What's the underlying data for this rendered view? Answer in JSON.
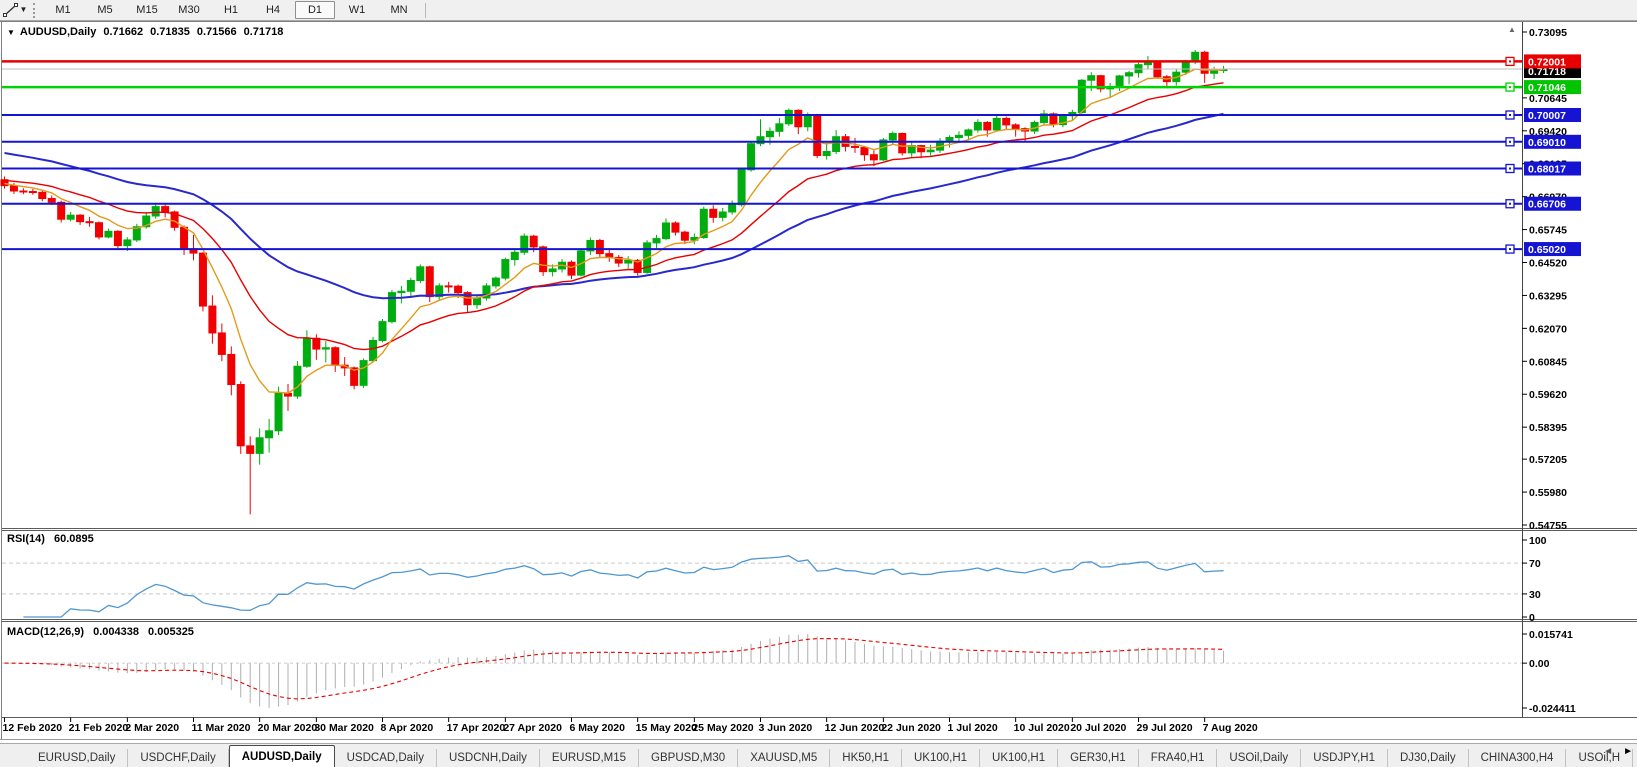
{
  "toolbar": {
    "timeframes": [
      "M1",
      "M5",
      "M15",
      "M30",
      "H1",
      "H4",
      "D1",
      "W1",
      "MN"
    ],
    "active_timeframe": "D1"
  },
  "chart": {
    "symbol_period": "AUDUSD,Daily",
    "ohlc": {
      "open": "0.71662",
      "high": "0.71835",
      "low": "0.71566",
      "close": "0.71718"
    }
  },
  "chart_data": {
    "type": "candlestick",
    "symbol": "AUDUSD",
    "period": "Daily",
    "title": "AUDUSD,Daily",
    "x_axis_labels": [
      "12 Feb 2020",
      "21 Feb 2020",
      "2 Mar 2020",
      "11 Mar 2020",
      "20 Mar 2020",
      "30 Mar 2020",
      "8 Apr 2020",
      "17 Apr 2020",
      "27 Apr 2020",
      "6 May 2020",
      "15 May 2020",
      "25 May 2020",
      "3 Jun 2020",
      "12 Jun 2020",
      "22 Jun 2020",
      "1 Jul 2020",
      "10 Jul 2020",
      "20 Jul 2020",
      "29 Jul 2020",
      "7 Aug 2020"
    ],
    "price_axis_ticks": [
      "0.73095",
      "0.70645",
      "0.69420",
      "0.68195",
      "0.66970",
      "0.65745",
      "0.64520",
      "0.63295",
      "0.62070",
      "0.60845",
      "0.59620",
      "0.58395",
      "0.57205",
      "0.55980",
      "0.54755"
    ],
    "current_price": {
      "value": "0.71718",
      "line_color": "#bdbdbd",
      "label_bg": "#000000"
    },
    "horizontal_lines": [
      {
        "price": "0.72001",
        "color": "#e60000",
        "width": 2.5
      },
      {
        "price": "0.71046",
        "color": "#00d400",
        "width": 2.5
      },
      {
        "price": "0.70007",
        "color": "#1414d2",
        "width": 2
      },
      {
        "price": "0.69010",
        "color": "#1414d2",
        "width": 2
      },
      {
        "price": "0.68017",
        "color": "#1414d2",
        "width": 2
      },
      {
        "price": "0.66706",
        "color": "#1414d2",
        "width": 2
      },
      {
        "price": "0.65020",
        "color": "#1414d2",
        "width": 2
      }
    ],
    "moving_average_colors": {
      "fast": "#e39a1b",
      "mid": "#e60000",
      "slow": "#2828cc"
    },
    "candle_colors": {
      "up": "#00ad10",
      "down": "#f00000"
    },
    "candles_ohlc": [
      [
        0.676,
        0.6772,
        0.6727,
        0.6738
      ],
      [
        0.6738,
        0.6748,
        0.6707,
        0.6718
      ],
      [
        0.6718,
        0.6728,
        0.6706,
        0.6716
      ],
      [
        0.6716,
        0.6726,
        0.6704,
        0.6713
      ],
      [
        0.6713,
        0.672,
        0.668,
        0.669
      ],
      [
        0.669,
        0.6701,
        0.6666,
        0.6676
      ],
      [
        0.6676,
        0.6682,
        0.6601,
        0.6613
      ],
      [
        0.6613,
        0.664,
        0.6605,
        0.6628
      ],
      [
        0.6628,
        0.6632,
        0.6592,
        0.6604
      ],
      [
        0.6604,
        0.6622,
        0.6585,
        0.66
      ],
      [
        0.66,
        0.6605,
        0.6538,
        0.6547
      ],
      [
        0.6547,
        0.6578,
        0.6542,
        0.6568
      ],
      [
        0.6568,
        0.6572,
        0.6505,
        0.6515
      ],
      [
        0.6515,
        0.6546,
        0.6495,
        0.6536
      ],
      [
        0.6536,
        0.6596,
        0.6528,
        0.6585
      ],
      [
        0.6585,
        0.664,
        0.6578,
        0.6625
      ],
      [
        0.6625,
        0.667,
        0.6615,
        0.666
      ],
      [
        0.666,
        0.6668,
        0.662,
        0.664
      ],
      [
        0.664,
        0.6645,
        0.657,
        0.6583
      ],
      [
        0.6583,
        0.659,
        0.648,
        0.6503
      ],
      [
        0.6503,
        0.6555,
        0.646,
        0.6487
      ],
      [
        0.6487,
        0.649,
        0.627,
        0.629
      ],
      [
        0.629,
        0.633,
        0.615,
        0.619
      ],
      [
        0.619,
        0.6225,
        0.6085,
        0.611
      ],
      [
        0.611,
        0.614,
        0.5958,
        0.5998
      ],
      [
        0.5998,
        0.601,
        0.574,
        0.577
      ],
      [
        0.577,
        0.5805,
        0.5515,
        0.5742
      ],
      [
        0.5742,
        0.5835,
        0.57,
        0.58
      ],
      [
        0.58,
        0.587,
        0.5745,
        0.5826
      ],
      [
        0.5826,
        0.599,
        0.581,
        0.5965
      ],
      [
        0.5965,
        0.6,
        0.59,
        0.5955
      ],
      [
        0.5955,
        0.6085,
        0.5945,
        0.6066
      ],
      [
        0.6066,
        0.62,
        0.606,
        0.617
      ],
      [
        0.617,
        0.6185,
        0.609,
        0.613
      ],
      [
        0.613,
        0.616,
        0.608,
        0.6135
      ],
      [
        0.6135,
        0.614,
        0.6045,
        0.607
      ],
      [
        0.607,
        0.61,
        0.603,
        0.606
      ],
      [
        0.606,
        0.6065,
        0.598,
        0.5995
      ],
      [
        0.5995,
        0.6095,
        0.5985,
        0.6087
      ],
      [
        0.6087,
        0.6175,
        0.608,
        0.6162
      ],
      [
        0.6162,
        0.6242,
        0.6155,
        0.6232
      ],
      [
        0.6232,
        0.635,
        0.6225,
        0.634
      ],
      [
        0.634,
        0.6365,
        0.63,
        0.6345
      ],
      [
        0.6345,
        0.6395,
        0.632,
        0.6385
      ],
      [
        0.6385,
        0.6445,
        0.6375,
        0.6436
      ],
      [
        0.6436,
        0.644,
        0.6305,
        0.6325
      ],
      [
        0.6325,
        0.6375,
        0.631,
        0.6365
      ],
      [
        0.6365,
        0.638,
        0.634,
        0.6364
      ],
      [
        0.6364,
        0.637,
        0.632,
        0.634
      ],
      [
        0.634,
        0.6345,
        0.6265,
        0.6295
      ],
      [
        0.6295,
        0.633,
        0.628,
        0.632
      ],
      [
        0.632,
        0.6375,
        0.631,
        0.6365
      ],
      [
        0.6365,
        0.64,
        0.6355,
        0.6394
      ],
      [
        0.6394,
        0.647,
        0.6385,
        0.6463
      ],
      [
        0.6463,
        0.65,
        0.644,
        0.649
      ],
      [
        0.649,
        0.656,
        0.648,
        0.655
      ],
      [
        0.655,
        0.6555,
        0.649,
        0.651
      ],
      [
        0.651,
        0.6515,
        0.6402,
        0.6418
      ],
      [
        0.6418,
        0.6445,
        0.64,
        0.6428
      ],
      [
        0.6428,
        0.6465,
        0.6415,
        0.6453
      ],
      [
        0.6453,
        0.646,
        0.639,
        0.6405
      ],
      [
        0.6405,
        0.6505,
        0.64,
        0.6495
      ],
      [
        0.6495,
        0.6545,
        0.648,
        0.6534
      ],
      [
        0.6534,
        0.654,
        0.647,
        0.6485
      ],
      [
        0.6485,
        0.6505,
        0.6455,
        0.6471
      ],
      [
        0.6471,
        0.648,
        0.6435,
        0.645
      ],
      [
        0.645,
        0.6475,
        0.643,
        0.646
      ],
      [
        0.646,
        0.6465,
        0.6403,
        0.6415
      ],
      [
        0.6415,
        0.6535,
        0.641,
        0.6525
      ],
      [
        0.6525,
        0.6555,
        0.6505,
        0.6541
      ],
      [
        0.6541,
        0.6616,
        0.6535,
        0.6599
      ],
      [
        0.6599,
        0.6605,
        0.6552,
        0.6565
      ],
      [
        0.6565,
        0.657,
        0.652,
        0.6535
      ],
      [
        0.6535,
        0.656,
        0.652,
        0.6545
      ],
      [
        0.6545,
        0.666,
        0.654,
        0.665
      ],
      [
        0.665,
        0.6665,
        0.66,
        0.662
      ],
      [
        0.662,
        0.6655,
        0.6605,
        0.664
      ],
      [
        0.664,
        0.6683,
        0.663,
        0.6667
      ],
      [
        0.6667,
        0.6805,
        0.666,
        0.6797
      ],
      [
        0.6797,
        0.69,
        0.679,
        0.6894
      ],
      [
        0.6894,
        0.6985,
        0.6885,
        0.692
      ],
      [
        0.692,
        0.6955,
        0.689,
        0.694
      ],
      [
        0.694,
        0.699,
        0.692,
        0.6968
      ],
      [
        0.6968,
        0.7025,
        0.696,
        0.7018
      ],
      [
        0.7018,
        0.7022,
        0.693,
        0.6957
      ],
      [
        0.6957,
        0.701,
        0.694,
        0.7
      ],
      [
        0.7,
        0.7005,
        0.684,
        0.685
      ],
      [
        0.685,
        0.6902,
        0.6835,
        0.6865
      ],
      [
        0.6865,
        0.6945,
        0.6855,
        0.692
      ],
      [
        0.692,
        0.693,
        0.6865,
        0.6884
      ],
      [
        0.6884,
        0.6915,
        0.686,
        0.688
      ],
      [
        0.688,
        0.6885,
        0.683,
        0.6853
      ],
      [
        0.6853,
        0.687,
        0.681,
        0.6834
      ],
      [
        0.6834,
        0.6915,
        0.683,
        0.6908
      ],
      [
        0.6908,
        0.694,
        0.689,
        0.6932
      ],
      [
        0.6932,
        0.6935,
        0.685,
        0.686
      ],
      [
        0.686,
        0.69,
        0.6845,
        0.6887
      ],
      [
        0.6887,
        0.689,
        0.684,
        0.6864
      ],
      [
        0.6864,
        0.689,
        0.685,
        0.687
      ],
      [
        0.687,
        0.6915,
        0.686,
        0.6903
      ],
      [
        0.6903,
        0.6925,
        0.688,
        0.6917
      ],
      [
        0.6917,
        0.694,
        0.69,
        0.6925
      ],
      [
        0.6925,
        0.695,
        0.691,
        0.6945
      ],
      [
        0.6945,
        0.6985,
        0.6935,
        0.6973
      ],
      [
        0.6973,
        0.6978,
        0.692,
        0.6945
      ],
      [
        0.6945,
        0.7,
        0.694,
        0.6988
      ],
      [
        0.6988,
        0.6995,
        0.6945,
        0.6964
      ],
      [
        0.6964,
        0.697,
        0.692,
        0.695
      ],
      [
        0.695,
        0.6955,
        0.69,
        0.6941
      ],
      [
        0.6941,
        0.698,
        0.693,
        0.6973
      ],
      [
        0.6973,
        0.702,
        0.6965,
        0.7005
      ],
      [
        0.7005,
        0.701,
        0.6955,
        0.6965
      ],
      [
        0.6965,
        0.7005,
        0.6955,
        0.6998
      ],
      [
        0.6998,
        0.702,
        0.698,
        0.701
      ],
      [
        0.701,
        0.7135,
        0.7005,
        0.713
      ],
      [
        0.713,
        0.716,
        0.709,
        0.7147
      ],
      [
        0.7147,
        0.715,
        0.7085,
        0.7098
      ],
      [
        0.7098,
        0.712,
        0.7065,
        0.7105
      ],
      [
        0.7105,
        0.715,
        0.709,
        0.7146
      ],
      [
        0.7146,
        0.7165,
        0.7115,
        0.7158
      ],
      [
        0.7158,
        0.7195,
        0.714,
        0.7188
      ],
      [
        0.7188,
        0.722,
        0.717,
        0.7195
      ],
      [
        0.7195,
        0.72,
        0.7135,
        0.7143
      ],
      [
        0.7143,
        0.715,
        0.71,
        0.7125
      ],
      [
        0.7125,
        0.717,
        0.711,
        0.716
      ],
      [
        0.716,
        0.7205,
        0.715,
        0.72
      ],
      [
        0.72,
        0.7243,
        0.719,
        0.7234
      ],
      [
        0.7234,
        0.724,
        0.712,
        0.7156
      ],
      [
        0.7156,
        0.718,
        0.7135,
        0.7166
      ],
      [
        0.71662,
        0.71835,
        0.71566,
        0.71718
      ]
    ],
    "indicators": {
      "rsi": {
        "name": "RSI(14)",
        "period": 14,
        "value": "60.0895",
        "levels": [
          30,
          70
        ],
        "scale_labels": [
          "100",
          "70",
          "30",
          "0"
        ],
        "line_color": "#4f97d1"
      },
      "macd": {
        "name": "MACD(12,26,9)",
        "periods": [
          12,
          26,
          9
        ],
        "main": "0.004338",
        "signal": "0.005325",
        "scale_labels": [
          "0.015741",
          "0.00",
          "-0.024411"
        ],
        "histogram_color": "#afafaf",
        "signal_color": "#e60000"
      }
    }
  },
  "tabbar": {
    "tabs": [
      "EURUSD,Daily",
      "USDCHF,Daily",
      "AUDUSD,Daily",
      "USDCAD,Daily",
      "USDCNH,Daily",
      "EURUSD,M15",
      "GBPUSD,M30",
      "XAUUSD,M5",
      "HK50,H1",
      "UK100,H1",
      "UK100,H1",
      "GER30,H1",
      "FRA40,H1",
      "USOil,Daily",
      "USDJPY,H1",
      "DJ30,Daily",
      "CHINA300,H4",
      "USOil,H"
    ],
    "active_index": 2,
    "scroll_left_arrow": "◄",
    "scroll_right_arrow": "►"
  }
}
